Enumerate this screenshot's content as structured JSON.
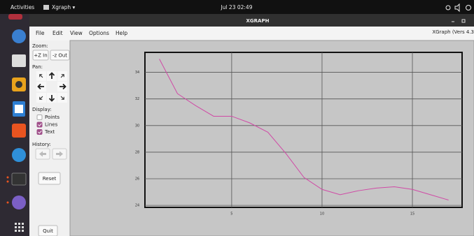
{
  "top_bar": {
    "activities": "Activities",
    "app": "Xgraph ▾",
    "clock": "Jul 23  02:49"
  },
  "window": {
    "title": "XGRAPH",
    "menu": [
      "File",
      "Edit",
      "View",
      "Options",
      "Help"
    ],
    "version": "XGraph (Vers 4.3"
  },
  "controls": {
    "zoom_label": "Zoom:",
    "zoom_in": "+Z In",
    "zoom_out": "-z Out",
    "pan_label": "Pan:",
    "display_label": "Display:",
    "display_options": [
      {
        "label": "Points",
        "checked": false
      },
      {
        "label": "Lines",
        "checked": true
      },
      {
        "label": "Text",
        "checked": true
      }
    ],
    "history_label": "History:",
    "reset": "Reset",
    "quit": "Quit"
  },
  "chart_data": {
    "type": "line",
    "x": [
      1,
      2,
      3,
      4,
      5,
      6,
      7,
      8,
      9,
      10,
      11,
      12,
      13,
      14,
      15,
      16,
      17
    ],
    "values": [
      35.0,
      32.4,
      31.5,
      30.7,
      30.7,
      30.2,
      29.5,
      27.9,
      26.1,
      25.2,
      24.8,
      25.1,
      25.3,
      25.4,
      25.2,
      24.8,
      24.4
    ],
    "color": "#d04aa6",
    "xlim": [
      0.2,
      17.75
    ],
    "ylim": [
      23.85,
      35.5
    ],
    "xticks": [
      5,
      10,
      15
    ],
    "yticks": [
      24,
      26,
      28,
      30,
      32,
      34
    ],
    "grid": true
  }
}
